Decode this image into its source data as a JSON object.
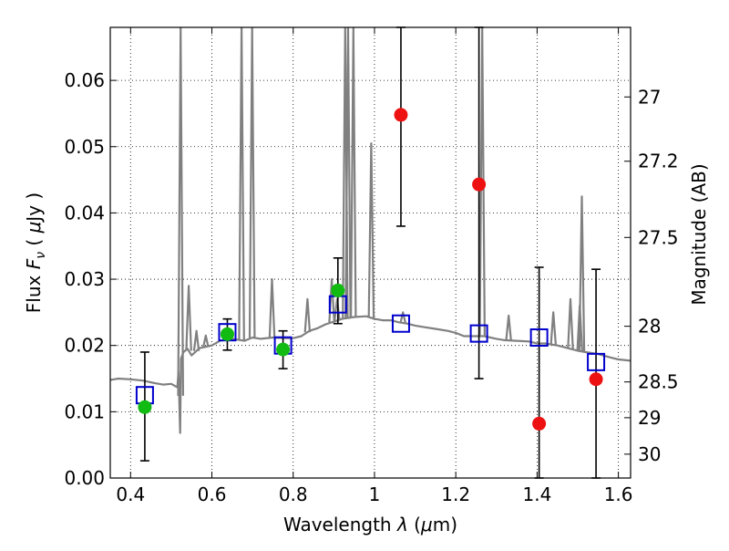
{
  "chart_data": {
    "type": "scatter",
    "title": "",
    "xlabel": "Wavelength  λ (μm)",
    "ylabel": "Flux  F_ν  ( μJy )",
    "ylabel_right": "Magnitude (AB)",
    "xlim": [
      0.35,
      1.63
    ],
    "ylim": [
      0.0,
      0.068
    ],
    "grid": true,
    "x_ticks": [
      0.4,
      0.6,
      0.8,
      1.0,
      1.2,
      1.4,
      1.6
    ],
    "x_tick_labels": [
      "0.4",
      "0.6",
      "0.8",
      "1",
      "1.2",
      "1.4",
      "1.6"
    ],
    "y_ticks": [
      0.0,
      0.01,
      0.02,
      0.03,
      0.04,
      0.05,
      0.06
    ],
    "y_tick_labels": [
      "0.00",
      "0.01",
      "0.02",
      "0.03",
      "0.04",
      "0.05",
      "0.06"
    ],
    "right_ticks": [
      {
        "label": "27",
        "flux": 0.0575
      },
      {
        "label": "27.2",
        "flux": 0.0478
      },
      {
        "label": "27.5",
        "flux": 0.0363
      },
      {
        "label": "28",
        "flux": 0.0229
      },
      {
        "label": "28.5",
        "flux": 0.0145
      },
      {
        "label": "29",
        "flux": 0.0091
      },
      {
        "label": "30",
        "flux": 0.0036
      }
    ],
    "series": [
      {
        "marker": "line",
        "color": "#808080",
        "points": [
          [
            0.35,
            0.0148
          ],
          [
            0.37,
            0.015
          ],
          [
            0.4,
            0.0149
          ],
          [
            0.43,
            0.0147
          ],
          [
            0.46,
            0.0143
          ],
          [
            0.48,
            0.0141
          ],
          [
            0.5,
            0.0142
          ],
          [
            0.515,
            0.0137
          ],
          [
            0.518,
            0.016
          ],
          [
            0.522,
            0.0068
          ],
          [
            0.524,
            0.018
          ],
          [
            0.53,
            0.019
          ],
          [
            0.54,
            0.0195
          ],
          [
            0.55,
            0.0185
          ],
          [
            0.57,
            0.0196
          ],
          [
            0.6,
            0.02
          ],
          [
            0.62,
            0.0207
          ],
          [
            0.65,
            0.021
          ],
          [
            0.68,
            0.0207
          ],
          [
            0.7,
            0.0212
          ],
          [
            0.72,
            0.021
          ],
          [
            0.75,
            0.0212
          ],
          [
            0.78,
            0.0211
          ],
          [
            0.8,
            0.0211
          ],
          [
            0.82,
            0.0214
          ],
          [
            0.84,
            0.0222
          ],
          [
            0.86,
            0.0226
          ],
          [
            0.88,
            0.0232
          ],
          [
            0.9,
            0.0236
          ],
          [
            0.92,
            0.024
          ],
          [
            0.95,
            0.0243
          ],
          [
            0.98,
            0.0244
          ],
          [
            1.0,
            0.024
          ],
          [
            1.02,
            0.0238
          ],
          [
            1.04,
            0.0238
          ],
          [
            1.06,
            0.0235
          ],
          [
            1.08,
            0.0233
          ],
          [
            1.1,
            0.023
          ],
          [
            1.12,
            0.0228
          ],
          [
            1.15,
            0.0225
          ],
          [
            1.18,
            0.0222
          ],
          [
            1.2,
            0.0219
          ],
          [
            1.22,
            0.0214
          ],
          [
            1.25,
            0.0214
          ],
          [
            1.27,
            0.0214
          ],
          [
            1.3,
            0.021
          ],
          [
            1.32,
            0.0208
          ],
          [
            1.35,
            0.0207
          ],
          [
            1.38,
            0.0206
          ],
          [
            1.4,
            0.0203
          ],
          [
            1.42,
            0.0203
          ],
          [
            1.45,
            0.02
          ],
          [
            1.47,
            0.0197
          ],
          [
            1.5,
            0.0192
          ],
          [
            1.52,
            0.019
          ],
          [
            1.55,
            0.0187
          ],
          [
            1.58,
            0.0182
          ],
          [
            1.6,
            0.0179
          ],
          [
            1.63,
            0.0177
          ]
        ]
      },
      {
        "marker": "emission-lines",
        "color": "#808080",
        "points": [
          [
            0.523,
            0.068
          ],
          [
            0.543,
            0.029
          ],
          [
            0.562,
            0.0222
          ],
          [
            0.585,
            0.0215
          ],
          [
            0.673,
            0.068
          ],
          [
            0.699,
            0.068
          ],
          [
            0.748,
            0.03
          ],
          [
            0.835,
            0.027
          ],
          [
            0.895,
            0.03
          ],
          [
            0.908,
            0.027
          ],
          [
            0.928,
            0.068
          ],
          [
            0.935,
            0.068
          ],
          [
            0.948,
            0.068
          ],
          [
            0.992,
            0.0505
          ],
          [
            1.07,
            0.025
          ],
          [
            1.265,
            0.068
          ],
          [
            1.33,
            0.0245
          ],
          [
            1.44,
            0.025
          ],
          [
            1.482,
            0.027
          ],
          [
            1.505,
            0.026
          ],
          [
            1.51,
            0.0425
          ]
        ]
      },
      {
        "marker": "open-square",
        "color": "#0000cc",
        "points": [
          [
            0.435,
            0.0125
          ],
          [
            0.638,
            0.022
          ],
          [
            0.775,
            0.02
          ],
          [
            0.91,
            0.0262
          ],
          [
            1.065,
            0.0233
          ],
          [
            1.257,
            0.0218
          ],
          [
            1.405,
            0.0212
          ],
          [
            1.545,
            0.0175
          ]
        ]
      },
      {
        "marker": "circle",
        "color": "#11bb11",
        "points": [
          [
            0.435,
            0.0107,
            0.0026,
            0.019
          ],
          [
            0.638,
            0.0217,
            0.0193,
            0.024
          ],
          [
            0.775,
            0.0194,
            0.0165,
            0.0222
          ],
          [
            0.91,
            0.0283,
            0.0233,
            0.0332
          ]
        ]
      },
      {
        "marker": "circle",
        "color": "#ee1111",
        "points": [
          [
            1.065,
            0.0548,
            0.038,
            0.068
          ],
          [
            1.257,
            0.0443,
            0.015,
            0.068
          ],
          [
            1.405,
            0.0082,
            0.0,
            0.0318
          ],
          [
            1.545,
            0.0149,
            0.0,
            0.0315
          ]
        ]
      }
    ]
  }
}
